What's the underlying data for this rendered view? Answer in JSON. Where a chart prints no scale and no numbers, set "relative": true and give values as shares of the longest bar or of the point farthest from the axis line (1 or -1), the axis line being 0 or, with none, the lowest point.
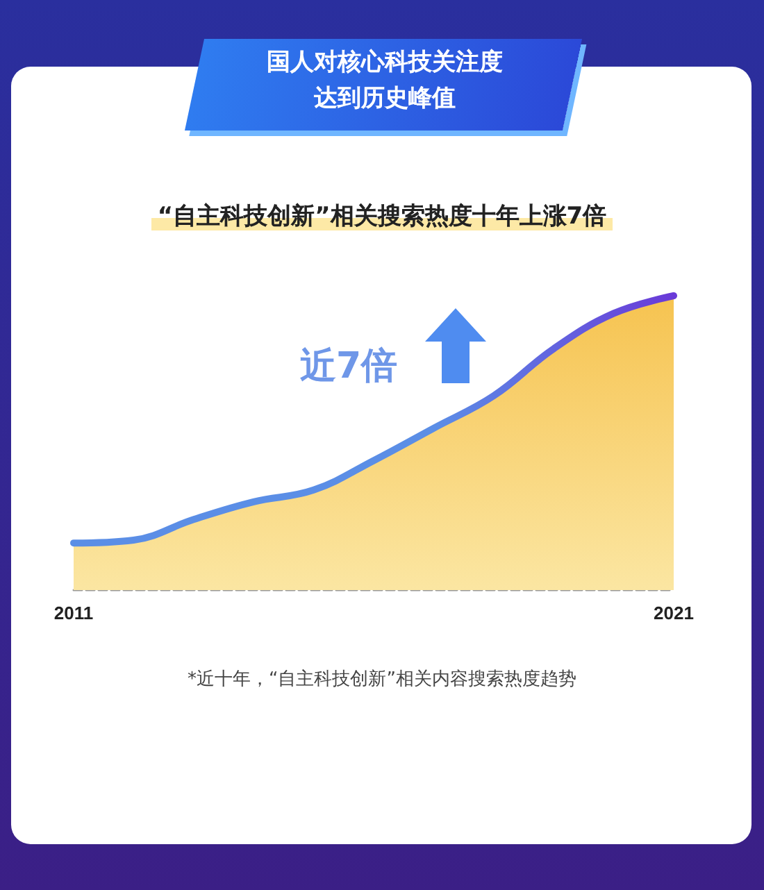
{
  "chart_data": {
    "type": "area",
    "title": "国人对核心科技关注度达到历史峰值",
    "subtitle": "“自主科技创新”相关搜索热度十年上涨7倍",
    "relative": true,
    "categories": [
      "2011",
      null,
      null,
      null,
      null,
      null,
      null,
      null,
      null,
      null,
      "2021"
    ],
    "series": [
      {
        "color": "#5b8ee6",
        "values": [
          0.16,
          0.17,
          0.24,
          0.3,
          0.34,
          0.44,
          0.55,
          0.66,
          0.82,
          0.94,
          1
        ]
      }
    ],
    "annotations": [
      "近7倍",
      "*近十年，“自主科技创新”相关内容搜索热度趋势"
    ],
    "marker": "none",
    "line_style": "solid",
    "grid": false
  }
}
